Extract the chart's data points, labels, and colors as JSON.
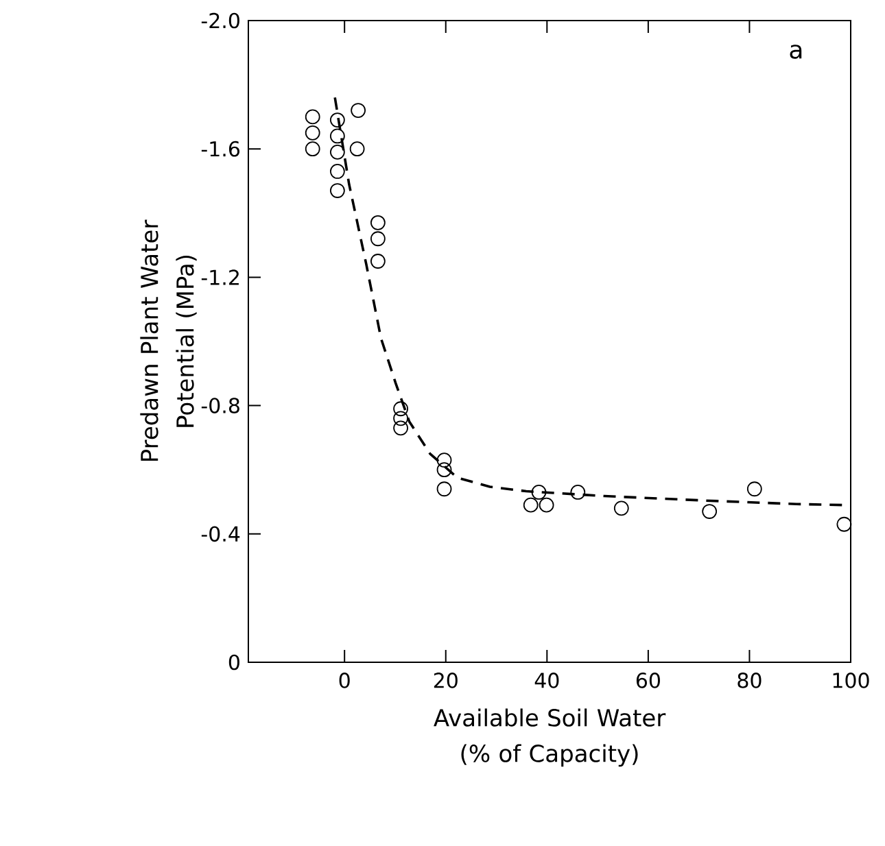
{
  "chart_data": {
    "type": "scatter",
    "xlabel": "Available Soil Water (% of Capacity)",
    "ylabel": "Predawn Plant Water Potential (MPa)",
    "annotations": [
      "a"
    ],
    "xlim": [
      -19,
      100
    ],
    "xticks": [
      0,
      20,
      40,
      60,
      80,
      100
    ],
    "ylim": [
      0,
      -2.0
    ],
    "yticks": [
      {
        "value": 0,
        "label": "0"
      },
      {
        "value": -0.4,
        "label": "-0.4"
      },
      {
        "value": -0.8,
        "label": "-0.8"
      },
      {
        "value": -1.2,
        "label": "-1.2"
      },
      {
        "value": -1.6,
        "label": "-1.6"
      },
      {
        "value": -2.0,
        "label": "-2.0"
      }
    ],
    "series": [
      {
        "type": "scatter",
        "color": "#000000",
        "marker": "circle",
        "x": [
          -6.3,
          -6.3,
          -6.3,
          -1.4,
          -1.4,
          -1.4,
          -1.4,
          -1.4,
          2.7,
          2.5,
          6.6,
          6.6,
          6.6,
          11.1,
          11.1,
          11.1,
          19.7,
          19.7,
          19.7,
          38.4,
          36.8,
          39.9,
          46.1,
          54.7,
          72.1,
          81.0,
          98.7
        ],
        "values": [
          -1.7,
          -1.65,
          -1.6,
          -1.69,
          -1.64,
          -1.59,
          -1.53,
          -1.47,
          -1.72,
          -1.6,
          -1.37,
          -1.32,
          -1.25,
          -0.79,
          -0.76,
          -0.73,
          -0.63,
          -0.6,
          -0.54,
          -0.53,
          -0.49,
          -0.49,
          -0.53,
          -0.48,
          -0.47,
          -0.54,
          -0.43
        ]
      },
      {
        "type": "line",
        "color": "#000000",
        "marker": "none",
        "line_style": "dashed",
        "x": [
          -1.9,
          0.9,
          4.3,
          7.2,
          10.1,
          12.8,
          16.9,
          22.3,
          28.7,
          35.9,
          51.3,
          71.2,
          89.3,
          98.8
        ],
        "values": [
          -1.76,
          -1.49,
          -1.24,
          -1.01,
          -0.87,
          -0.75,
          -0.65,
          -0.575,
          -0.547,
          -0.533,
          -0.518,
          -0.504,
          -0.493,
          -0.49
        ]
      }
    ]
  }
}
